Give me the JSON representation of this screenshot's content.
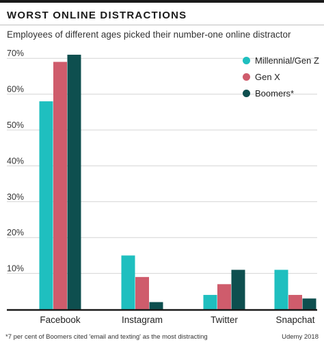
{
  "header": {
    "title": "WORST ONLINE DISTRACTIONS",
    "subtitle": "Employees of different ages picked their number-one online distractor"
  },
  "footer": {
    "footnote": "*7 per cent of Boomers cited 'email and texting' as the most distracting",
    "source": "Udemy 2018"
  },
  "chart_data": {
    "type": "bar",
    "title": "WORST ONLINE DISTRACTIONS",
    "subtitle": "Employees of different ages picked their number-one online distractor",
    "categories": [
      "Facebook",
      "Instagram",
      "Twitter",
      "Snapchat"
    ],
    "series": [
      {
        "name": "Millennial/Gen Z",
        "color": "#1fbfbf",
        "values": [
          58,
          15,
          4,
          11
        ]
      },
      {
        "name": "Gen X",
        "color": "#cf5c6c",
        "values": [
          69,
          9,
          7,
          4
        ]
      },
      {
        "name": "Boomers*",
        "color": "#0e4f4f",
        "values": [
          71,
          2,
          11,
          3
        ]
      }
    ],
    "ylim": [
      0,
      70
    ],
    "yticks": [
      10,
      20,
      30,
      40,
      50,
      60,
      70
    ],
    "ytick_labels": [
      "10%",
      "20%",
      "30%",
      "40%",
      "50%",
      "60%",
      "70%"
    ],
    "grid": true,
    "legend": "top-right"
  }
}
